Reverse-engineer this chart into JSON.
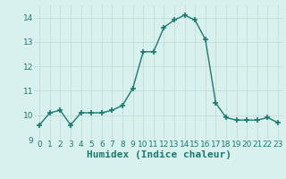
{
  "x": [
    0,
    1,
    2,
    3,
    4,
    5,
    6,
    7,
    8,
    9,
    10,
    11,
    12,
    13,
    14,
    15,
    16,
    17,
    18,
    19,
    20,
    21,
    22,
    23
  ],
  "y": [
    9.6,
    10.1,
    10.2,
    9.6,
    10.1,
    10.1,
    10.1,
    10.2,
    10.4,
    11.1,
    12.6,
    12.6,
    13.6,
    13.9,
    14.1,
    13.9,
    13.1,
    10.5,
    9.9,
    9.8,
    9.8,
    9.8,
    9.9,
    9.7
  ],
  "line_color": "#1a7a6e",
  "marker": "+",
  "marker_size": 4,
  "bg_color": "#d8f0ee",
  "grid_color": "#c0d8d4",
  "xlabel": "Humidex (Indice chaleur)",
  "xlabel_fontsize": 8,
  "xlabel_fontweight": "bold",
  "ylim": [
    9,
    14.5
  ],
  "xlim": [
    -0.5,
    23.5
  ],
  "yticks": [
    9,
    10,
    11,
    12,
    13,
    14
  ],
  "xticks": [
    0,
    1,
    2,
    3,
    4,
    5,
    6,
    7,
    8,
    9,
    10,
    11,
    12,
    13,
    14,
    15,
    16,
    17,
    18,
    19,
    20,
    21,
    22,
    23
  ],
  "tick_fontsize": 6.5,
  "linewidth": 1.0,
  "marker_linewidth": 1.2
}
